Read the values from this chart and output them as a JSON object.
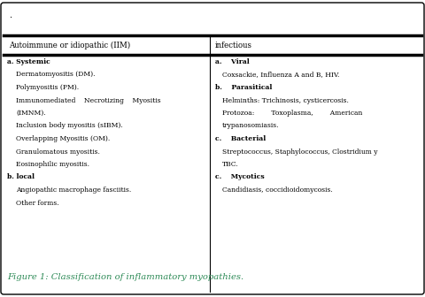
{
  "title": "Figure 1: Classification of inflammatory myopathies.",
  "col1_header": "Autoimmune or idiopathic (IIM)",
  "col2_header": "infectious",
  "col1_content": [
    {
      "text": "a. Systemic",
      "bold": true,
      "indent": 0
    },
    {
      "text": "Dermatomyositis (DM).",
      "bold": false,
      "indent": 1
    },
    {
      "text": "Polymyositis (PM).",
      "bold": false,
      "indent": 1
    },
    {
      "text": "Immunomediated    Necrotizing    Myositis",
      "bold": false,
      "indent": 1,
      "continuation": "(IMNM)."
    },
    {
      "text": "Inclusion body myositis (sIBM).",
      "bold": false,
      "indent": 1
    },
    {
      "text": "Overlapping Myositis (OM).",
      "bold": false,
      "indent": 1
    },
    {
      "text": "Granulomatous myositis.",
      "bold": false,
      "indent": 1
    },
    {
      "text": "Eosinophilic myositis.",
      "bold": false,
      "indent": 1
    },
    {
      "text": "b. local",
      "bold": true,
      "indent": 0
    },
    {
      "text": "Angiopathic macrophage fasciitis.",
      "bold": false,
      "indent": 1
    },
    {
      "text": "Other forms.",
      "bold": false,
      "indent": 1
    }
  ],
  "col2_content": [
    {
      "text": "a.    Viral",
      "bold": true,
      "indent": 0
    },
    {
      "text": "Coxsackie, Influenza A and B, HIV.",
      "bold": false,
      "indent": 1
    },
    {
      "text": "b.    Parasitical",
      "bold": true,
      "indent": 0
    },
    {
      "text": "Helminths: Trichinosis, cysticercosis.",
      "bold": false,
      "indent": 1
    },
    {
      "text": "Protozoa:        Toxoplasma,        American",
      "bold": false,
      "indent": 1,
      "continuation": "trypanosomiasis."
    },
    {
      "text": "c.    Bacterial",
      "bold": true,
      "indent": 0
    },
    {
      "text": "Streptococcus, Staphylococcus, Clostridium y",
      "bold": false,
      "indent": 1,
      "continuation": "TBC."
    },
    {
      "text": "c.    Mycotics",
      "bold": true,
      "indent": 0
    },
    {
      "text": "Candidiasis, coccidioidomycosis.",
      "bold": false,
      "indent": 1
    }
  ],
  "bg_color": "#ffffff",
  "border_color": "#000000",
  "text_color": "#000000",
  "title_color": "#2E8B57",
  "fig_width": 4.8,
  "fig_height": 3.36
}
